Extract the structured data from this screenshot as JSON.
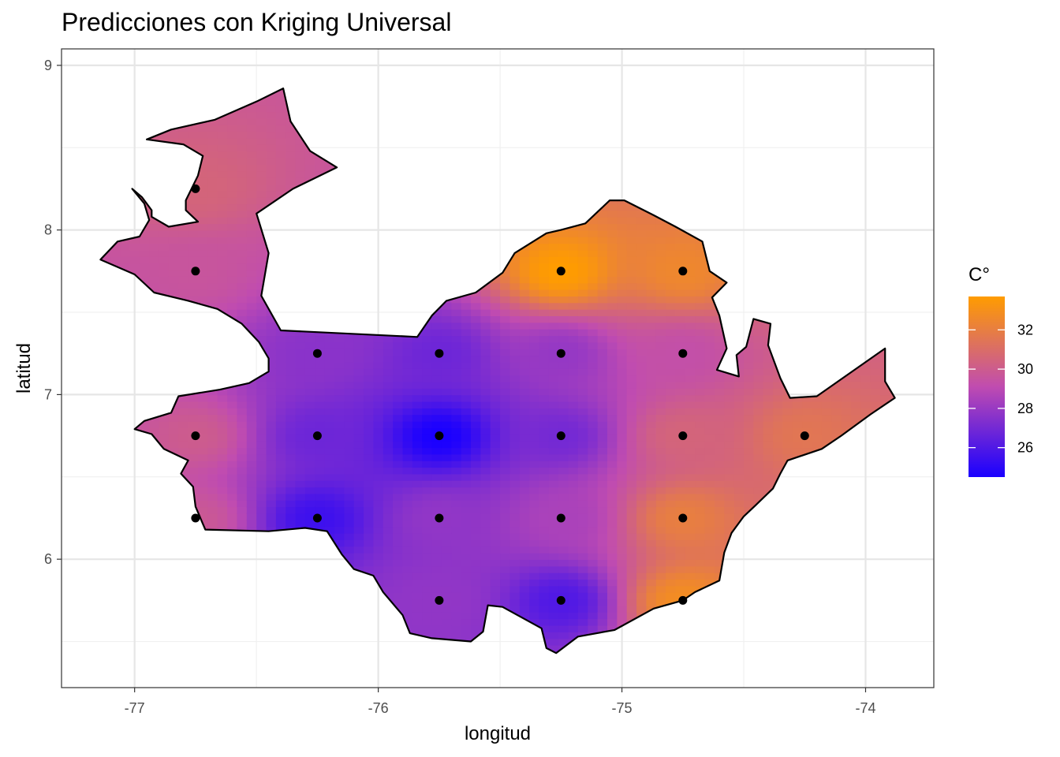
{
  "chart_data": {
    "type": "heatmap",
    "title": "Predicciones con Kriging Universal",
    "xlabel": "longitud",
    "ylabel": "latitud",
    "xlim": [
      -77.3,
      -73.72
    ],
    "ylim": [
      5.22,
      9.1
    ],
    "x_ticks": [
      -77,
      -76,
      -75,
      -74
    ],
    "x_tick_labels": [
      "-77",
      "-76",
      "-75",
      "-74"
    ],
    "y_ticks": [
      6,
      7,
      8,
      9
    ],
    "y_tick_labels": [
      "6",
      "7",
      "8",
      "9"
    ],
    "grid": true,
    "legend": {
      "title": "C°",
      "position": "right",
      "min": 24.5,
      "max": 33.7,
      "breaks": [
        26,
        28,
        30,
        32
      ],
      "break_labels": [
        "26",
        "28",
        "30",
        "32"
      ],
      "colors": [
        "#1a00ff",
        "#ff9c00"
      ]
    },
    "stations": [
      {
        "x": -76.75,
        "y": 8.25,
        "value": 30.5
      },
      {
        "x": -76.75,
        "y": 7.75,
        "value": 29.6
      },
      {
        "x": -76.25,
        "y": 7.25,
        "value": 27.6
      },
      {
        "x": -75.75,
        "y": 7.25,
        "value": 26.8
      },
      {
        "x": -75.25,
        "y": 7.25,
        "value": 27.9
      },
      {
        "x": -74.75,
        "y": 7.25,
        "value": 29.3
      },
      {
        "x": -76.75,
        "y": 6.75,
        "value": 30.0
      },
      {
        "x": -76.25,
        "y": 6.75,
        "value": 26.8
      },
      {
        "x": -75.75,
        "y": 6.75,
        "value": 24.5
      },
      {
        "x": -75.25,
        "y": 6.75,
        "value": 27.0
      },
      {
        "x": -74.75,
        "y": 6.75,
        "value": 30.5
      },
      {
        "x": -74.25,
        "y": 6.75,
        "value": 31.5
      },
      {
        "x": -76.75,
        "y": 6.25,
        "value": 29.8
      },
      {
        "x": -76.25,
        "y": 6.25,
        "value": 25.5
      },
      {
        "x": -75.75,
        "y": 6.25,
        "value": 27.8
      },
      {
        "x": -75.25,
        "y": 6.25,
        "value": 28.5
      },
      {
        "x": -74.75,
        "y": 6.25,
        "value": 32.0
      },
      {
        "x": -75.75,
        "y": 5.75,
        "value": 27.8
      },
      {
        "x": -75.25,
        "y": 5.75,
        "value": 26.0
      },
      {
        "x": -74.75,
        "y": 5.75,
        "value": 32.8
      },
      {
        "x": -75.25,
        "y": 7.75,
        "value": 33.7
      },
      {
        "x": -74.75,
        "y": 7.75,
        "value": 32.5
      }
    ],
    "boundary": [
      [
        -77.14,
        7.82
      ],
      [
        -77.0,
        7.73
      ],
      [
        -76.92,
        7.62
      ],
      [
        -76.78,
        7.57
      ],
      [
        -76.66,
        7.52
      ],
      [
        -76.56,
        7.43
      ],
      [
        -76.49,
        7.32
      ],
      [
        -76.45,
        7.22
      ],
      [
        -76.45,
        7.14
      ],
      [
        -76.53,
        7.07
      ],
      [
        -76.65,
        7.03
      ],
      [
        -76.82,
        6.99
      ],
      [
        -76.85,
        6.89
      ],
      [
        -76.96,
        6.84
      ],
      [
        -77.0,
        6.79
      ],
      [
        -76.93,
        6.76
      ],
      [
        -76.88,
        6.67
      ],
      [
        -76.78,
        6.6
      ],
      [
        -76.81,
        6.52
      ],
      [
        -76.76,
        6.44
      ],
      [
        -76.75,
        6.32
      ],
      [
        -76.71,
        6.18
      ],
      [
        -76.45,
        6.17
      ],
      [
        -76.3,
        6.19
      ],
      [
        -76.21,
        6.17
      ],
      [
        -76.15,
        6.03
      ],
      [
        -76.1,
        5.94
      ],
      [
        -76.02,
        5.9
      ],
      [
        -75.98,
        5.8
      ],
      [
        -75.9,
        5.66
      ],
      [
        -75.87,
        5.55
      ],
      [
        -75.78,
        5.52
      ],
      [
        -75.62,
        5.5
      ],
      [
        -75.57,
        5.56
      ],
      [
        -75.55,
        5.72
      ],
      [
        -75.49,
        5.71
      ],
      [
        -75.33,
        5.58
      ],
      [
        -75.31,
        5.46
      ],
      [
        -75.27,
        5.43
      ],
      [
        -75.18,
        5.53
      ],
      [
        -75.03,
        5.57
      ],
      [
        -74.87,
        5.7
      ],
      [
        -74.75,
        5.75
      ],
      [
        -74.7,
        5.8
      ],
      [
        -74.6,
        5.87
      ],
      [
        -74.58,
        6.04
      ],
      [
        -74.55,
        6.16
      ],
      [
        -74.5,
        6.26
      ],
      [
        -74.45,
        6.33
      ],
      [
        -74.38,
        6.43
      ],
      [
        -74.35,
        6.52
      ],
      [
        -74.32,
        6.6
      ],
      [
        -74.18,
        6.67
      ],
      [
        -74.1,
        6.75
      ],
      [
        -73.98,
        6.88
      ],
      [
        -73.88,
        6.98
      ],
      [
        -73.92,
        7.08
      ],
      [
        -73.92,
        7.28
      ],
      [
        -74.2,
        6.99
      ],
      [
        -74.31,
        6.98
      ],
      [
        -74.35,
        7.1
      ],
      [
        -74.4,
        7.3
      ],
      [
        -74.39,
        7.43
      ],
      [
        -74.46,
        7.46
      ],
      [
        -74.49,
        7.29
      ],
      [
        -74.53,
        7.24
      ],
      [
        -74.52,
        7.11
      ],
      [
        -74.61,
        7.15
      ],
      [
        -74.57,
        7.28
      ],
      [
        -74.6,
        7.48
      ],
      [
        -74.63,
        7.59
      ],
      [
        -74.57,
        7.68
      ],
      [
        -74.64,
        7.75
      ],
      [
        -74.67,
        7.93
      ],
      [
        -74.78,
        8.02
      ],
      [
        -74.87,
        8.09
      ],
      [
        -74.99,
        8.18
      ],
      [
        -75.05,
        8.18
      ],
      [
        -75.15,
        8.04
      ],
      [
        -75.25,
        8.0
      ],
      [
        -75.31,
        7.98
      ],
      [
        -75.44,
        7.86
      ],
      [
        -75.49,
        7.74
      ],
      [
        -75.6,
        7.62
      ],
      [
        -75.72,
        7.57
      ],
      [
        -75.78,
        7.48
      ],
      [
        -75.84,
        7.35
      ],
      [
        -76.4,
        7.39
      ],
      [
        -76.48,
        7.6
      ],
      [
        -76.45,
        7.86
      ],
      [
        -76.5,
        8.1
      ],
      [
        -76.35,
        8.25
      ],
      [
        -76.17,
        8.38
      ],
      [
        -76.28,
        8.48
      ],
      [
        -76.36,
        8.66
      ],
      [
        -76.39,
        8.86
      ],
      [
        -76.5,
        8.78
      ],
      [
        -76.67,
        8.67
      ],
      [
        -76.85,
        8.61
      ],
      [
        -76.95,
        8.55
      ],
      [
        -76.8,
        8.52
      ],
      [
        -76.72,
        8.45
      ],
      [
        -76.74,
        8.33
      ],
      [
        -76.79,
        8.18
      ],
      [
        -76.79,
        8.12
      ],
      [
        -76.74,
        8.05
      ],
      [
        -76.86,
        8.02
      ],
      [
        -76.93,
        8.08
      ],
      [
        -76.93,
        8.12
      ],
      [
        -76.97,
        8.2
      ],
      [
        -77.01,
        8.25
      ],
      [
        -76.96,
        8.16
      ],
      [
        -76.94,
        8.06
      ],
      [
        -76.98,
        7.96
      ],
      [
        -77.07,
        7.93
      ],
      [
        -77.14,
        7.82
      ]
    ]
  }
}
